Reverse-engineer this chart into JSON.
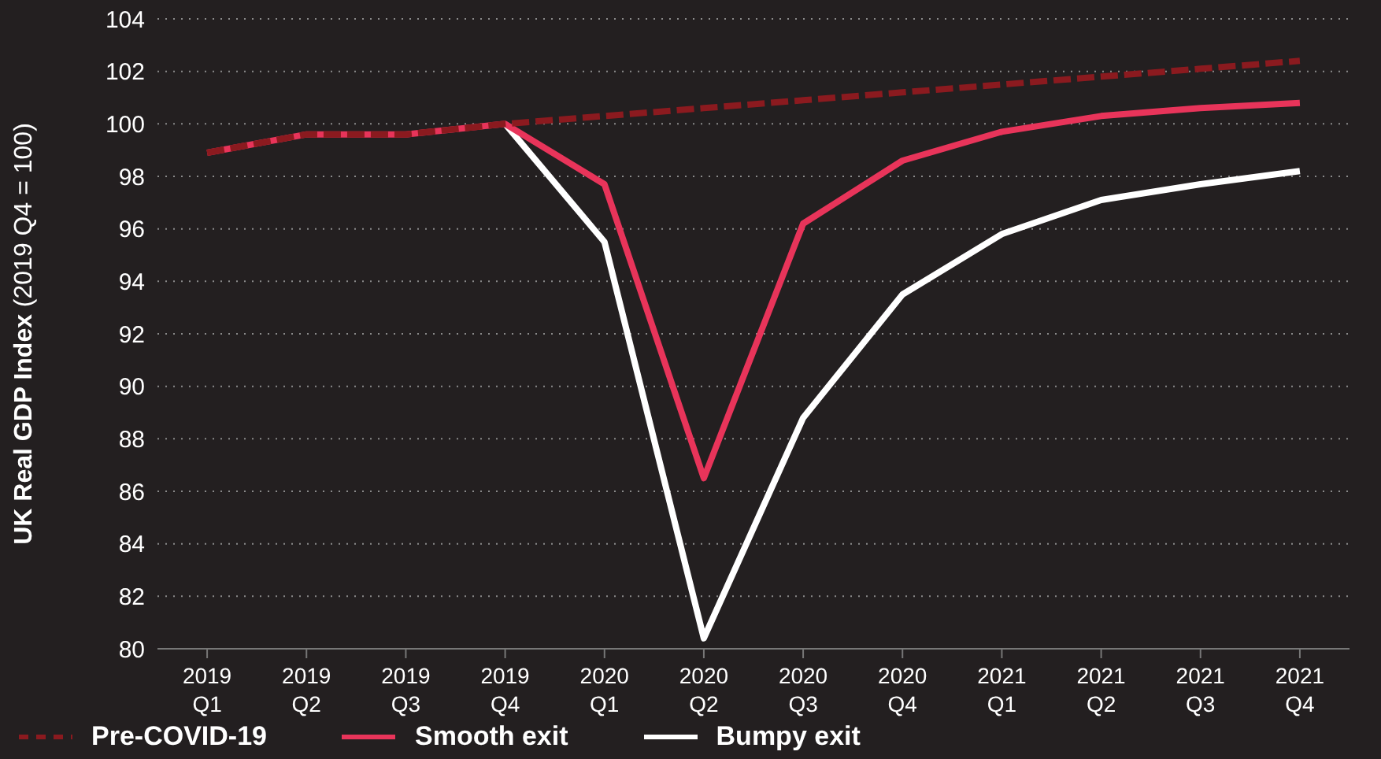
{
  "chart_data": {
    "type": "line",
    "ylabel": "UK Real GDP Index (2019 Q4 = 100)",
    "categories": [
      "2019 Q1",
      "2019 Q2",
      "2019 Q3",
      "2019 Q4",
      "2020 Q1",
      "2020 Q2",
      "2020 Q3",
      "2020 Q4",
      "2021 Q1",
      "2021 Q2",
      "2021 Q3",
      "2021 Q4"
    ],
    "series": [
      {
        "name": "Pre-COVID-19",
        "color": "#8b1a1f",
        "line_style": "dashed",
        "values": [
          98.9,
          99.6,
          99.6,
          100,
          100.3,
          100.6,
          100.9,
          101.2,
          101.5,
          101.8,
          102.1,
          102.4
        ]
      },
      {
        "name": "Smooth exit",
        "color": "#e8345a",
        "values": [
          98.9,
          99.6,
          99.6,
          100,
          97.7,
          86.5,
          96.2,
          98.6,
          99.7,
          100.3,
          100.6,
          100.8
        ]
      },
      {
        "name": "Bumpy exit",
        "color": "#ffffff",
        "values": [
          null,
          null,
          null,
          100,
          95.5,
          80.4,
          88.8,
          93.5,
          95.8,
          97.1,
          97.7,
          98.2
        ]
      }
    ],
    "ylim": [
      80,
      104
    ],
    "yticks": [
      80,
      82,
      84,
      86,
      88,
      90,
      92,
      94,
      96,
      98,
      100,
      102,
      104
    ],
    "grid": "y",
    "legend": "bottom",
    "marker": "none",
    "line_style": "solid"
  }
}
